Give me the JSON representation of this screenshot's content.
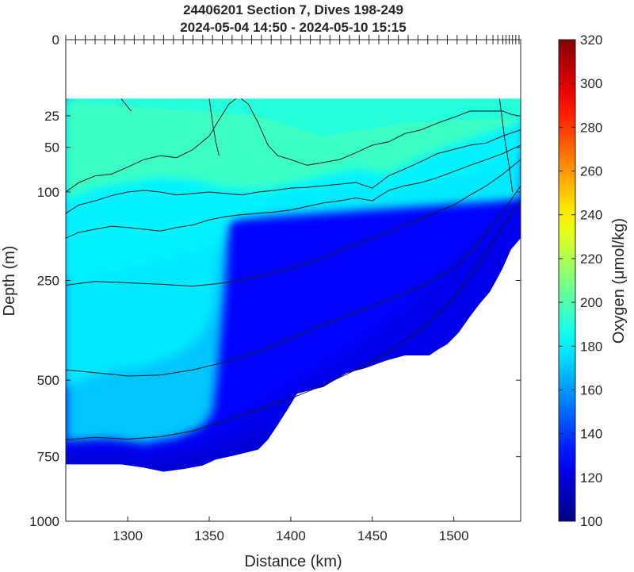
{
  "chart_data": {
    "type": "heatmap",
    "title_line1": "24406201 Section 7, Dives 198-249",
    "title_line2": "2024-05-04 14:50 - 2024-05-10 15:15",
    "xlabel": "Distance (km)",
    "ylabel": "Depth (m)",
    "colorbar_label": "Oxygen (μmol/kg)",
    "xlim": [
      1262,
      1541
    ],
    "ylim": [
      0,
      1000
    ],
    "y_scale": "sqrt",
    "x_ticks": [
      1300,
      1350,
      1400,
      1450,
      1500
    ],
    "y_ticks": [
      0,
      25,
      50,
      100,
      250,
      500,
      750,
      1000
    ],
    "colorbar_range": [
      100,
      320
    ],
    "colorbar_ticks": [
      100,
      120,
      140,
      160,
      180,
      200,
      220,
      240,
      260,
      280,
      300,
      320
    ],
    "dive_tick_km": [
      1262,
      1268,
      1274,
      1280,
      1286,
      1292,
      1298,
      1304,
      1310,
      1316,
      1322,
      1328,
      1334,
      1340,
      1346,
      1352,
      1358,
      1364,
      1370,
      1376,
      1382,
      1388,
      1394,
      1400,
      1406,
      1412,
      1418,
      1424,
      1430,
      1436,
      1442,
      1448,
      1454,
      1460,
      1466,
      1472,
      1478,
      1484,
      1490,
      1496,
      1502,
      1508,
      1514,
      1520,
      1524,
      1527,
      1530,
      1532,
      1534,
      1536,
      1538,
      1540
    ],
    "data_top_depth_m": 15,
    "bottom_profile": [
      [
        1262,
        778
      ],
      [
        1296,
        778
      ],
      [
        1310,
        790
      ],
      [
        1322,
        805
      ],
      [
        1334,
        795
      ],
      [
        1346,
        782
      ],
      [
        1354,
        760
      ],
      [
        1366,
        745
      ],
      [
        1380,
        725
      ],
      [
        1386,
        690
      ],
      [
        1392,
        640
      ],
      [
        1398,
        590
      ],
      [
        1404,
        540
      ],
      [
        1420,
        520
      ],
      [
        1434,
        480
      ],
      [
        1446,
        465
      ],
      [
        1458,
        445
      ],
      [
        1470,
        430
      ],
      [
        1485,
        430
      ],
      [
        1490,
        415
      ],
      [
        1496,
        400
      ],
      [
        1503,
        370
      ],
      [
        1510,
        330
      ],
      [
        1516,
        300
      ],
      [
        1522,
        275
      ],
      [
        1526,
        250
      ],
      [
        1530,
        225
      ],
      [
        1535,
        190
      ],
      [
        1541,
        170
      ]
    ],
    "deep_layer": [
      [
        1262,
        700
      ],
      [
        1290,
        695
      ],
      [
        1310,
        710
      ],
      [
        1330,
        690
      ],
      [
        1350,
        660
      ],
      [
        1370,
        600
      ],
      [
        1390,
        540
      ],
      [
        1410,
        480
      ],
      [
        1430,
        420
      ],
      [
        1450,
        360
      ],
      [
        1470,
        300
      ],
      [
        1490,
        240
      ],
      [
        1510,
        185
      ],
      [
        1525,
        140
      ],
      [
        1535,
        120
      ],
      [
        1541,
        110
      ]
    ],
    "low_core": [
      [
        1262,
        750
      ],
      [
        1290,
        745
      ],
      [
        1310,
        760
      ],
      [
        1330,
        745
      ],
      [
        1350,
        720
      ],
      [
        1370,
        680
      ],
      [
        1390,
        640
      ],
      [
        1420,
        610
      ],
      [
        1450,
        560
      ],
      [
        1490,
        490
      ],
      [
        1520,
        390
      ],
      [
        1541,
        340
      ]
    ],
    "oxycline": [
      [
        1262,
        245
      ],
      [
        1280,
        240
      ],
      [
        1300,
        225
      ],
      [
        1320,
        210
      ],
      [
        1340,
        195
      ],
      [
        1350,
        185
      ],
      [
        1355,
        175
      ],
      [
        1360,
        140
      ],
      [
        1380,
        125
      ],
      [
        1400,
        110
      ],
      [
        1420,
        100
      ],
      [
        1440,
        95
      ],
      [
        1460,
        100
      ],
      [
        1480,
        90
      ],
      [
        1500,
        82
      ],
      [
        1520,
        75
      ],
      [
        1530,
        65
      ],
      [
        1541,
        55
      ]
    ],
    "mixed_layer": [
      [
        1262,
        110
      ],
      [
        1280,
        95
      ],
      [
        1300,
        88
      ],
      [
        1320,
        82
      ],
      [
        1340,
        85
      ],
      [
        1360,
        95
      ],
      [
        1380,
        98
      ],
      [
        1400,
        90
      ],
      [
        1420,
        80
      ],
      [
        1440,
        72
      ],
      [
        1460,
        78
      ],
      [
        1480,
        60
      ],
      [
        1500,
        48
      ],
      [
        1520,
        38
      ],
      [
        1530,
        34
      ],
      [
        1541,
        30
      ]
    ],
    "contours": [
      {
        "level": "c1",
        "points": [
          [
            1262,
            100
          ],
          [
            1270,
            88
          ],
          [
            1280,
            80
          ],
          [
            1290,
            78
          ],
          [
            1300,
            70
          ],
          [
            1310,
            62
          ],
          [
            1320,
            58
          ],
          [
            1330,
            60
          ],
          [
            1340,
            52
          ],
          [
            1350,
            40
          ],
          [
            1357,
            26
          ],
          [
            1362,
            18
          ],
          [
            1368,
            14
          ],
          [
            1374,
            18
          ],
          [
            1380,
            30
          ],
          [
            1386,
            48
          ],
          [
            1392,
            58
          ],
          [
            1400,
            62
          ],
          [
            1410,
            68
          ],
          [
            1420,
            65
          ],
          [
            1430,
            62
          ],
          [
            1440,
            55
          ],
          [
            1450,
            48
          ],
          [
            1460,
            45
          ],
          [
            1470,
            38
          ],
          [
            1480,
            35
          ],
          [
            1490,
            30
          ],
          [
            1500,
            26
          ],
          [
            1510,
            22
          ],
          [
            1520,
            22
          ],
          [
            1530,
            22
          ],
          [
            1535,
            24
          ],
          [
            1540,
            25
          ]
        ]
      },
      {
        "level": "c2",
        "points": [
          [
            1262,
            130
          ],
          [
            1270,
            118
          ],
          [
            1280,
            112
          ],
          [
            1290,
            105
          ],
          [
            1300,
            100
          ],
          [
            1310,
            98
          ],
          [
            1320,
            100
          ],
          [
            1330,
            104
          ],
          [
            1340,
            102
          ],
          [
            1350,
            100
          ],
          [
            1360,
            102
          ],
          [
            1370,
            104
          ],
          [
            1380,
            100
          ],
          [
            1390,
            98
          ],
          [
            1400,
            95
          ],
          [
            1410,
            94
          ],
          [
            1420,
            92
          ],
          [
            1430,
            90
          ],
          [
            1440,
            88
          ],
          [
            1450,
            95
          ],
          [
            1460,
            80
          ],
          [
            1470,
            72
          ],
          [
            1480,
            64
          ],
          [
            1490,
            56
          ],
          [
            1500,
            52
          ],
          [
            1510,
            48
          ],
          [
            1520,
            46
          ],
          [
            1530,
            40
          ],
          [
            1541,
            35
          ]
        ]
      },
      {
        "level": "c3",
        "points": [
          [
            1262,
            170
          ],
          [
            1270,
            160
          ],
          [
            1280,
            155
          ],
          [
            1290,
            150
          ],
          [
            1300,
            152
          ],
          [
            1310,
            155
          ],
          [
            1320,
            158
          ],
          [
            1330,
            152
          ],
          [
            1340,
            148
          ],
          [
            1350,
            140
          ],
          [
            1360,
            135
          ],
          [
            1370,
            132
          ],
          [
            1380,
            130
          ],
          [
            1390,
            128
          ],
          [
            1400,
            125
          ],
          [
            1410,
            120
          ],
          [
            1420,
            115
          ],
          [
            1430,
            112
          ],
          [
            1440,
            108
          ],
          [
            1450,
            112
          ],
          [
            1460,
            98
          ],
          [
            1470,
            92
          ],
          [
            1480,
            88
          ],
          [
            1490,
            82
          ],
          [
            1500,
            75
          ],
          [
            1510,
            68
          ],
          [
            1520,
            62
          ],
          [
            1530,
            56
          ],
          [
            1541,
            48
          ]
        ]
      },
      {
        "level": "c4",
        "points": [
          [
            1262,
            260
          ],
          [
            1280,
            252
          ],
          [
            1300,
            255
          ],
          [
            1320,
            258
          ],
          [
            1340,
            262
          ],
          [
            1360,
            255
          ],
          [
            1380,
            242
          ],
          [
            1400,
            225
          ],
          [
            1420,
            205
          ],
          [
            1440,
            180
          ],
          [
            1460,
            160
          ],
          [
            1480,
            138
          ],
          [
            1500,
            118
          ],
          [
            1510,
            104
          ],
          [
            1520,
            92
          ],
          [
            1530,
            78
          ],
          [
            1541,
            62
          ]
        ]
      },
      {
        "level": "c5",
        "points": [
          [
            1262,
            470
          ],
          [
            1280,
            478
          ],
          [
            1300,
            488
          ],
          [
            1320,
            485
          ],
          [
            1340,
            470
          ],
          [
            1360,
            448
          ],
          [
            1380,
            420
          ],
          [
            1400,
            385
          ],
          [
            1420,
            350
          ],
          [
            1440,
            320
          ],
          [
            1460,
            292
          ],
          [
            1480,
            262
          ],
          [
            1500,
            225
          ],
          [
            1510,
            195
          ],
          [
            1520,
            160
          ],
          [
            1530,
            128
          ],
          [
            1541,
            92
          ]
        ]
      },
      {
        "level": "c6",
        "points": [
          [
            1262,
            690
          ],
          [
            1280,
            682
          ],
          [
            1300,
            688
          ],
          [
            1320,
            680
          ],
          [
            1340,
            660
          ],
          [
            1360,
            625
          ],
          [
            1380,
            590
          ],
          [
            1400,
            555
          ],
          [
            1420,
            515
          ],
          [
            1440,
            470
          ],
          [
            1460,
            420
          ],
          [
            1480,
            360
          ],
          [
            1500,
            290
          ],
          [
            1515,
            220
          ],
          [
            1530,
            150
          ],
          [
            1541,
            112
          ]
        ]
      },
      {
        "level": "c7",
        "points": [
          [
            1262,
            1000
          ],
          [
            1262,
            1000
          ]
        ]
      },
      {
        "level": "c8",
        "points": [
          [
            1350,
            15
          ],
          [
            1352,
            30
          ],
          [
            1354,
            45
          ],
          [
            1356,
            58
          ]
        ]
      },
      {
        "level": "c9",
        "points": [
          [
            1528,
            15
          ],
          [
            1531,
            40
          ],
          [
            1534,
            70
          ],
          [
            1536,
            100
          ]
        ]
      },
      {
        "level": "c10",
        "points": [
          [
            1296,
            15
          ],
          [
            1302,
            22
          ]
        ]
      }
    ]
  }
}
